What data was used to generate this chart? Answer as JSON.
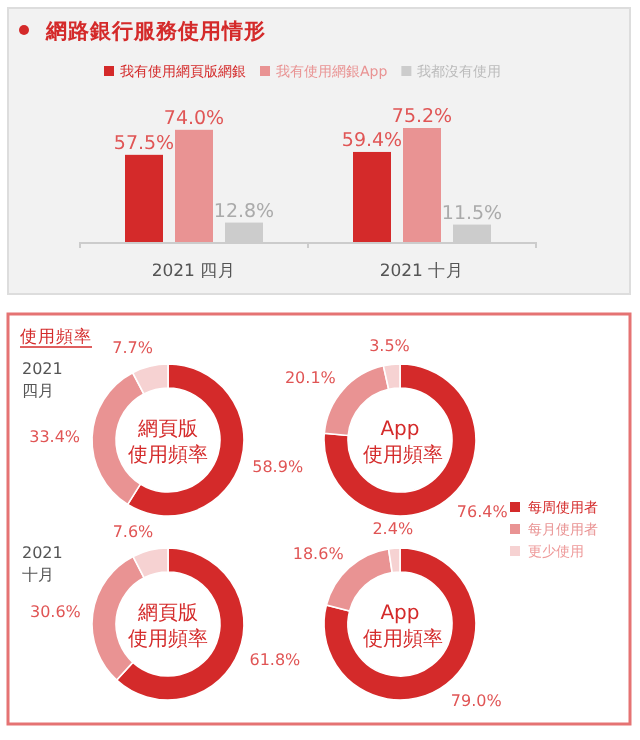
{
  "chart_data": [
    {
      "type": "bar",
      "title": "網路銀行服務使用情形",
      "categories": [
        "2021 四月",
        "2021 十月"
      ],
      "legend": "top",
      "series": [
        {
          "name": "我有使用網頁版網銀",
          "color": "#d42a2a",
          "values": [
            57.5,
            59.4
          ],
          "value_labels": [
            "57.5%",
            "59.4%"
          ]
        },
        {
          "name": "我有使用網銀App",
          "color": "#e99393",
          "values": [
            74.0,
            75.2
          ],
          "value_labels": [
            "74.0%",
            "75.2%"
          ]
        },
        {
          "name": "我都沒有使用",
          "color": "#cccccc",
          "values": [
            12.8,
            11.5
          ],
          "value_labels": [
            "12.8%",
            "11.5%"
          ]
        }
      ]
    },
    {
      "type": "donut",
      "title": "網頁版使用頻率",
      "subtitle": "2021 四月",
      "annotations": [
        "使用頻率"
      ],
      "categories": [
        null,
        null,
        null
      ],
      "values": [
        58.9,
        33.4,
        7.7
      ],
      "value_labels": [
        "58.9%",
        "33.4%",
        "7.7%"
      ],
      "colors": [
        "#d42a2a",
        "#e99393",
        "#f6d2d2"
      ]
    },
    {
      "type": "donut",
      "title": "App 使用頻率",
      "categories": [
        "每周使用者",
        "每月使用者",
        "更少使用"
      ],
      "values": [
        76.4,
        20.1,
        3.5
      ],
      "value_labels": [
        "76.4%",
        "20.1%",
        "3.5%"
      ],
      "colors": [
        "#d42a2a",
        "#e99393",
        "#f6d2d2"
      ],
      "legend": "bottom right"
    },
    {
      "type": "donut",
      "title": "網頁版使用頻率",
      "subtitle": "2021 十月",
      "categories": [
        null,
        null,
        null
      ],
      "values": [
        61.8,
        30.6,
        7.6
      ],
      "value_labels": [
        "61.8%",
        "30.6%",
        "7.6%"
      ],
      "colors": [
        "#d42a2a",
        "#e99393",
        "#f6d2d2"
      ]
    },
    {
      "type": "donut",
      "title": "App 使用頻率",
      "categories": [
        null,
        null,
        null
      ],
      "values": [
        79.0,
        18.6,
        2.4
      ],
      "value_labels": [
        "79.0%",
        "18.6%",
        "2.4%"
      ],
      "colors": [
        "#d42a2a",
        "#e99393",
        "#f6d2d2"
      ]
    }
  ]
}
